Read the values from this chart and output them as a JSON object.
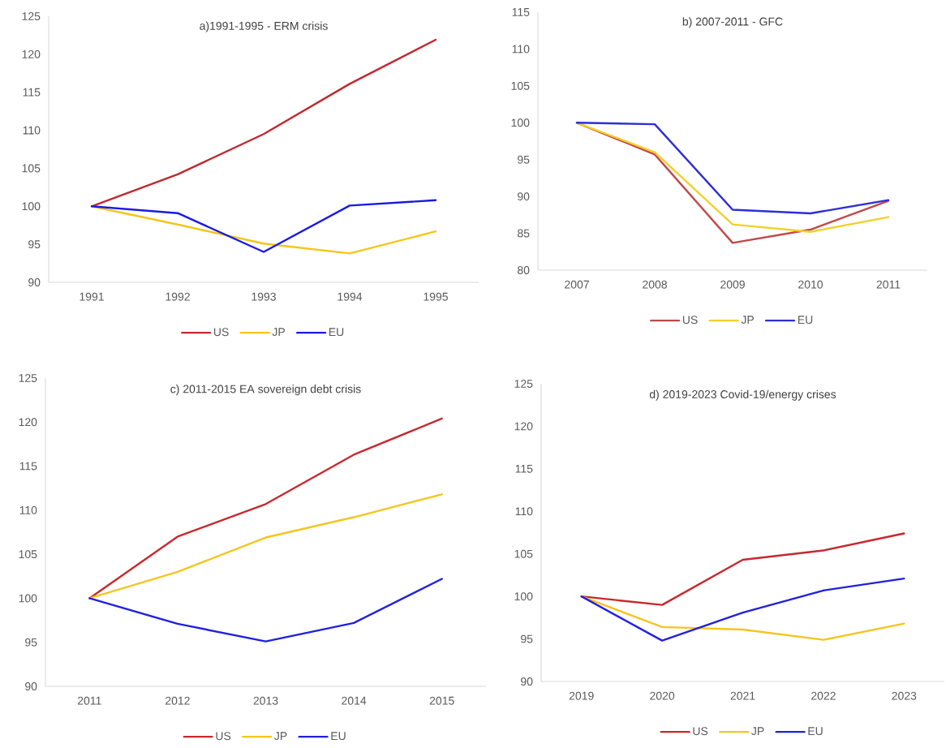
{
  "chart_data": [
    {
      "type": "line",
      "title": "a)1991-1995 - ERM crisis",
      "categories": [
        "1991",
        "1992",
        "1993",
        "1994",
        "1995"
      ],
      "series": [
        {
          "name": "US",
          "color": "#c0282d",
          "values": [
            100,
            104.2,
            109.5,
            116.1,
            121.9
          ]
        },
        {
          "name": "JP",
          "color": "#f5c518",
          "values": [
            100,
            97.6,
            95.1,
            93.8,
            96.7
          ]
        },
        {
          "name": "EU",
          "color": "#1a1ae0",
          "values": [
            100,
            99.1,
            94.0,
            100.1,
            100.8
          ]
        }
      ],
      "ylim": [
        90,
        125
      ],
      "yticks": [
        90,
        95,
        100,
        105,
        110,
        115,
        120,
        125
      ],
      "legend": "bottom"
    },
    {
      "type": "line",
      "title": "b) 2007-2011 - GFC",
      "categories": [
        "2007",
        "2008",
        "2009",
        "2010",
        "2011"
      ],
      "series": [
        {
          "name": "US",
          "color": "#c04848",
          "values": [
            100,
            95.7,
            83.7,
            85.5,
            89.4
          ]
        },
        {
          "name": "JP",
          "color": "#f2d02a",
          "values": [
            100,
            96.0,
            86.2,
            85.2,
            87.2
          ]
        },
        {
          "name": "EU",
          "color": "#2e2ed6",
          "values": [
            100,
            99.8,
            88.2,
            87.7,
            89.5
          ]
        }
      ],
      "ylim": [
        80,
        115
      ],
      "yticks": [
        80,
        85,
        90,
        95,
        100,
        105,
        110,
        115
      ],
      "legend": "bottom"
    },
    {
      "type": "line",
      "title": "c) 2011-2015 EA sovereign debt crisis",
      "categories": [
        "2011",
        "2012",
        "2013",
        "2014",
        "2015"
      ],
      "series": [
        {
          "name": "US",
          "color": "#c8282d",
          "values": [
            100,
            107.0,
            110.7,
            116.3,
            120.4
          ]
        },
        {
          "name": "JP",
          "color": "#f5c520",
          "values": [
            100,
            103.0,
            106.9,
            109.2,
            111.8
          ]
        },
        {
          "name": "EU",
          "color": "#2020e0",
          "values": [
            100,
            97.1,
            95.1,
            97.2,
            102.2
          ]
        }
      ],
      "ylim": [
        90,
        125
      ],
      "yticks": [
        90,
        95,
        100,
        105,
        110,
        115,
        120,
        125
      ],
      "legend": "bottom"
    },
    {
      "type": "line",
      "title": "d) 2019-2023 Covid-19/energy crises",
      "categories": [
        "2019",
        "2020",
        "2021",
        "2022",
        "2023"
      ],
      "series": [
        {
          "name": "US",
          "color": "#c8282d",
          "values": [
            100,
            99.0,
            104.3,
            105.4,
            107.4
          ]
        },
        {
          "name": "JP",
          "color": "#f5c520",
          "values": [
            100,
            96.4,
            96.1,
            94.9,
            96.8
          ]
        },
        {
          "name": "EU",
          "color": "#2020e0",
          "values": [
            100,
            94.8,
            98.1,
            100.7,
            102.1
          ]
        }
      ],
      "ylim": [
        90,
        125
      ],
      "yticks": [
        90,
        95,
        100,
        105,
        110,
        115,
        120,
        125
      ],
      "legend": "bottom"
    }
  ]
}
